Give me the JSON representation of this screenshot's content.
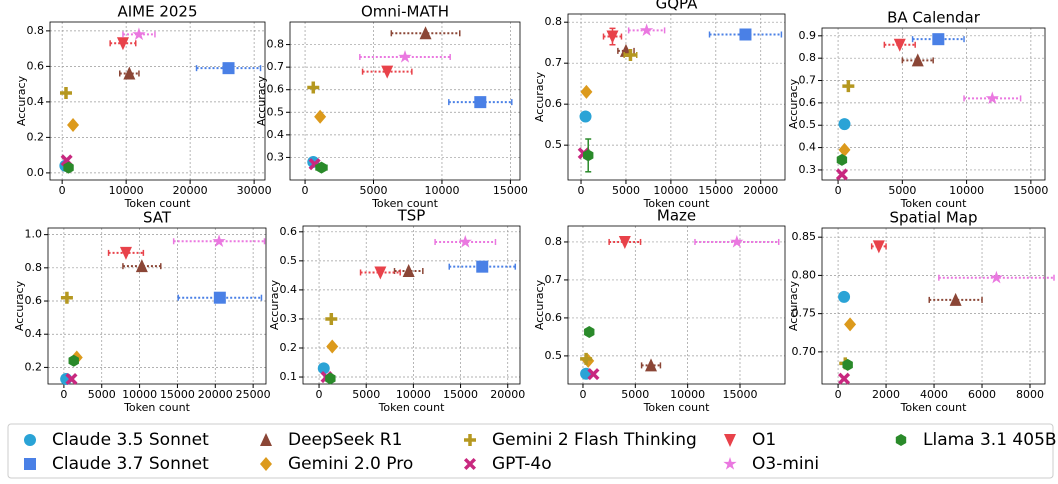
{
  "chart_data": {
    "type": "scatter",
    "xlabel": "Token count",
    "ylabel": "Accuracy",
    "grid": true,
    "series": [
      {
        "name": "Claude 3.5 Sonnet",
        "color": "#2aa3d6",
        "marker": "circle"
      },
      {
        "name": "Claude 3.7 Sonnet",
        "color": "#4a80e6",
        "marker": "square"
      },
      {
        "name": "DeepSeek R1",
        "color": "#8b4636",
        "marker": "triangle-up"
      },
      {
        "name": "Gemini 2.0 Pro",
        "color": "#dc9a1c",
        "marker": "diamond"
      },
      {
        "name": "Gemini 2 Flash Thinking",
        "color": "#b59820",
        "marker": "plus"
      },
      {
        "name": "GPT-4o",
        "color": "#c8287f",
        "marker": "x"
      },
      {
        "name": "O1",
        "color": "#e8424a",
        "marker": "triangle-down"
      },
      {
        "name": "O3-mini",
        "color": "#ea78e0",
        "marker": "star"
      },
      {
        "name": "Llama 3.1 405B",
        "color": "#2a8a2a",
        "marker": "hexagon"
      }
    ],
    "panels": [
      {
        "title": "AIME 2025",
        "xlim": [
          -1900,
          31700
        ],
        "ylim": [
          -0.04,
          0.85
        ],
        "xticks": [
          0,
          10000,
          20000,
          30000
        ],
        "yticks": [
          {
            "value": 0,
            "label": "0.0"
          },
          0.2,
          0.4,
          0.6,
          0.8
        ],
        "x": [
          500,
          26000,
          10500,
          1700,
          600,
          700,
          9500,
          12000,
          1000
        ],
        "y": [
          0.04,
          0.59,
          0.56,
          0.27,
          0.45,
          0.07,
          0.73,
          0.78,
          0.03
        ],
        "xerr": [
          null,
          5000,
          1500,
          null,
          null,
          null,
          2000,
          2500,
          null
        ],
        "yerr": [
          null,
          null,
          null,
          null,
          null,
          null,
          null,
          null,
          null
        ]
      },
      {
        "title": "Omni-MATH",
        "xlim": [
          -1100,
          15700
        ],
        "ylim": [
          0.2,
          0.9
        ],
        "xticks": [
          0,
          5000,
          10000,
          15000
        ],
        "yticks": [
          0.3,
          0.4,
          0.5,
          0.6,
          0.7,
          0.8
        ],
        "x": [
          600,
          12800,
          8800,
          1100,
          600,
          700,
          6000,
          7300,
          1200
        ],
        "y": [
          0.28,
          0.545,
          0.85,
          0.48,
          0.61,
          0.27,
          0.68,
          0.745,
          0.255
        ],
        "xerr": [
          null,
          2300,
          2500,
          null,
          null,
          null,
          1800,
          3300,
          400
        ],
        "yerr": [
          null,
          null,
          null,
          null,
          null,
          null,
          null,
          null,
          null
        ]
      },
      {
        "title": "GQPA",
        "xlim": [
          -1450,
          22700
        ],
        "ylim": [
          0.415,
          0.82
        ],
        "xticks": [
          0,
          5000,
          10000,
          15000,
          20000
        ],
        "yticks": [
          0.5,
          0.6,
          0.7,
          0.8
        ],
        "x": [
          500,
          18300,
          5000,
          600,
          5500,
          300,
          3500,
          7300,
          800
        ],
        "y": [
          0.57,
          0.77,
          0.73,
          0.63,
          0.72,
          0.48,
          0.765,
          0.78,
          0.475
        ],
        "xerr": [
          null,
          4000,
          900,
          null,
          700,
          null,
          1000,
          2000,
          null
        ],
        "yerr": [
          null,
          null,
          null,
          null,
          null,
          null,
          0.02,
          null,
          0.04
        ]
      },
      {
        "title": "BA Calendar",
        "xlim": [
          -1250,
          16100
        ],
        "ylim": [
          0.255,
          0.935
        ],
        "xticks": [
          0,
          5000,
          10000,
          15000
        ],
        "yticks": [
          0.3,
          0.4,
          0.5,
          0.6,
          0.7,
          0.8,
          0.9
        ],
        "x": [
          500,
          7800,
          6200,
          500,
          800,
          300,
          4800,
          12000,
          300
        ],
        "y": [
          0.505,
          0.885,
          0.79,
          0.39,
          0.675,
          0.28,
          0.86,
          0.62,
          0.345
        ],
        "xerr": [
          null,
          2000,
          1200,
          null,
          null,
          null,
          1200,
          2200,
          null
        ],
        "yerr": [
          null,
          null,
          null,
          null,
          null,
          null,
          null,
          null,
          null
        ]
      },
      {
        "title": "SAT",
        "xlim": [
          -2100,
          26700
        ],
        "ylim": [
          0.1,
          1.04
        ],
        "xticks": [
          0,
          5000,
          10000,
          15000,
          20000,
          25000
        ],
        "yticks": [
          0.2,
          0.4,
          0.6,
          0.8,
          {
            "value": 1,
            "label": "1.0"
          }
        ],
        "x": [
          300,
          20600,
          10300,
          1700,
          400,
          1000,
          8200,
          20500,
          1300
        ],
        "y": [
          0.13,
          0.62,
          0.81,
          0.26,
          0.62,
          0.13,
          0.89,
          0.96,
          0.24
        ],
        "xerr": [
          null,
          5500,
          2500,
          null,
          null,
          null,
          2300,
          6000,
          null
        ],
        "yerr": [
          null,
          null,
          null,
          null,
          null,
          null,
          null,
          null,
          null
        ]
      },
      {
        "title": "TSP",
        "xlim": [
          -1700,
          21300
        ],
        "ylim": [
          0.076,
          0.62
        ],
        "xticks": [
          0,
          5000,
          10000,
          15000,
          20000
        ],
        "yticks": [
          0.1,
          0.2,
          0.3,
          0.4,
          0.5,
          0.6
        ],
        "x": [
          500,
          17300,
          9500,
          1400,
          1300,
          800,
          6500,
          15500,
          1200
        ],
        "y": [
          0.13,
          0.48,
          0.465,
          0.205,
          0.3,
          0.1,
          0.46,
          0.565,
          0.095
        ],
        "xerr": [
          null,
          3500,
          1500,
          null,
          null,
          null,
          2100,
          3200,
          null
        ],
        "yerr": [
          null,
          null,
          null,
          null,
          null,
          null,
          null,
          null,
          null
        ]
      },
      {
        "title": "Maze",
        "xlim": [
          -1430,
          19300
        ],
        "ylim": [
          0.426,
          0.842
        ],
        "xticks": [
          0,
          5000,
          10000,
          15000
        ],
        "yticks": [
          0.5,
          0.6,
          0.7,
          0.8
        ],
        "x": [
          300,
          null,
          6500,
          500,
          300,
          1000,
          4000,
          14700,
          600
        ],
        "y": [
          0.453,
          null,
          0.475,
          0.487,
          0.492,
          0.452,
          0.8,
          0.8,
          0.563
        ],
        "xerr": [
          null,
          null,
          900,
          null,
          null,
          null,
          1500,
          4000,
          null
        ],
        "yerr": [
          null,
          null,
          null,
          null,
          null,
          null,
          null,
          null,
          null
        ]
      },
      {
        "title": "Spatial Map",
        "xlim": [
          -670,
          8625
        ],
        "ylim": [
          0.658,
          0.862
        ],
        "xticks": [
          0,
          2000,
          4000,
          6000,
          8000
        ],
        "yticks": [
          {
            "value": 0.7,
            "label": "0.70"
          },
          0.75,
          {
            "value": 0.8,
            "label": "0.80"
          },
          0.85
        ],
        "x": [
          250,
          null,
          4900,
          500,
          300,
          250,
          1700,
          6600,
          400
        ],
        "y": [
          0.772,
          null,
          0.768,
          0.736,
          0.685,
          0.665,
          0.838,
          0.797,
          0.683
        ],
        "xerr": [
          null,
          null,
          1100,
          null,
          null,
          null,
          300,
          2400,
          null
        ],
        "yerr": [
          null,
          null,
          null,
          null,
          null,
          null,
          null,
          null,
          null
        ]
      }
    ]
  }
}
